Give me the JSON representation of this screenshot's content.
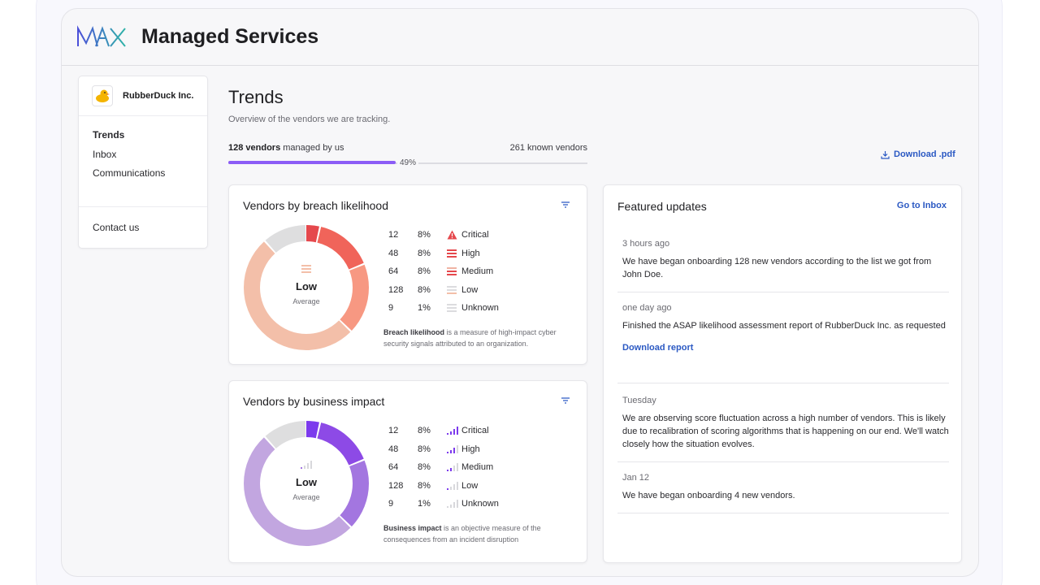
{
  "app": {
    "title": "Managed Services"
  },
  "org": {
    "name": "RubberDuck Inc."
  },
  "nav": {
    "items": [
      "Trends",
      "Inbox",
      "Communications"
    ],
    "active": "Trends",
    "contact": "Contact us"
  },
  "page": {
    "title": "Trends",
    "subtitle": "Overview of the vendors we are tracking.",
    "managed_count": "128 vendors",
    "managed_suffix": "managed by us",
    "known": "261 known vendors",
    "progress_label": "49%",
    "progress_value": 0.49,
    "download_pdf": "Download .pdf"
  },
  "breach": {
    "title": "Vendors by breach likelihood",
    "center_value": "Low",
    "center_sub": "Average",
    "rows": [
      {
        "count": "12",
        "pct": "8%",
        "label": "Critical",
        "icon": "warning-icon"
      },
      {
        "count": "48",
        "pct": "8%",
        "label": "High",
        "icon": "bars-high-icon"
      },
      {
        "count": "64",
        "pct": "8%",
        "label": "Medium",
        "icon": "bars-medium-icon"
      },
      {
        "count": "128",
        "pct": "8%",
        "label": "Low",
        "icon": "bars-low-icon"
      },
      {
        "count": "9",
        "pct": "1%",
        "label": "Unknown",
        "icon": "bars-unknown-icon"
      }
    ],
    "note_bold": "Breach likelihood",
    "note_rest": " is a measure of high-impact cyber security signals attributed to an organization.",
    "colors": [
      "#e5484d",
      "#f0645a",
      "#f79882",
      "#f3bfa9",
      "#dededf"
    ]
  },
  "impact": {
    "title": "Vendors by business impact",
    "center_value": "Low",
    "center_sub": "Average",
    "rows": [
      {
        "count": "12",
        "pct": "8%",
        "label": "Critical",
        "icon": "signal-4-icon"
      },
      {
        "count": "48",
        "pct": "8%",
        "label": "High",
        "icon": "signal-3-icon"
      },
      {
        "count": "64",
        "pct": "8%",
        "label": "Medium",
        "icon": "signal-2-icon"
      },
      {
        "count": "128",
        "pct": "8%",
        "label": "Low",
        "icon": "signal-1-icon"
      },
      {
        "count": "9",
        "pct": "1%",
        "label": "Unknown",
        "icon": "signal-0-icon"
      }
    ],
    "note_bold": "Business impact",
    "note_rest": " is an objective measure of the consequences from an incident disruption",
    "colors": [
      "#7c3aed",
      "#8d4ae6",
      "#a376e0",
      "#c2a6e0",
      "#dededf"
    ]
  },
  "featured": {
    "title": "Featured updates",
    "inbox_link": "Go to Inbox",
    "updates": [
      {
        "time": "3 hours ago",
        "msg": "We have began onboarding 128 new vendors according to the list we got from John Doe.",
        "action": ""
      },
      {
        "time": "one day ago",
        "msg": "Finished the ASAP likelihood assessment report of RubberDuck Inc. as requested",
        "action": "Download report"
      },
      {
        "time": "Tuesday",
        "msg": "We are observing score fluctuation across a high number of vendors. This is likely due to recalibration of scoring algorithms that is happening on our end. We'll watch closely how the situation evolves.",
        "action": ""
      },
      {
        "time": "Jan 12",
        "msg": "We have began onboarding 4 new vendors.",
        "action": ""
      }
    ]
  }
}
